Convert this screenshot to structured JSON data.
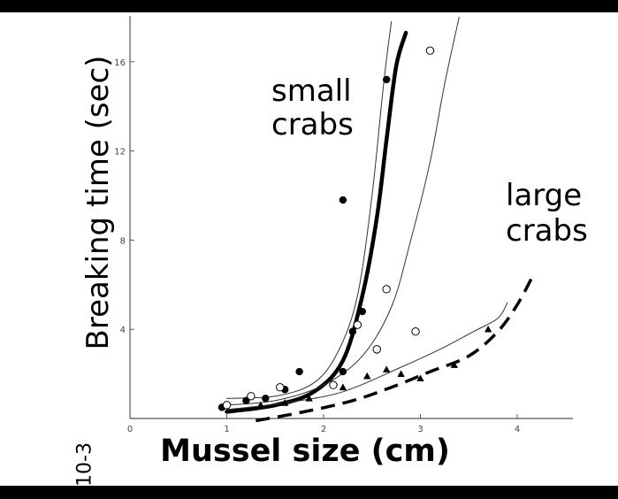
{
  "chart_data": {
    "type": "scatter",
    "xlabel": "Mussel size (cm)",
    "ylabel": "Breaking time (sec)",
    "xlim": [
      0,
      4.5
    ],
    "ylim": [
      0,
      18
    ],
    "x_ticks": [
      "0",
      "1",
      "2",
      "3",
      "4"
    ],
    "y_ticks": [
      "4",
      "8",
      "12",
      "16"
    ],
    "annotations": {
      "small": "small\ncrabs",
      "large": "large\ncrabs",
      "side_mark": "10-3"
    },
    "series": [
      {
        "marker": "filled-circle",
        "color": "#000000",
        "points": [
          [
            0.95,
            0.5
          ],
          [
            1.2,
            0.8
          ],
          [
            1.4,
            0.9
          ],
          [
            1.6,
            1.3
          ],
          [
            1.75,
            2.1
          ],
          [
            2.2,
            9.8
          ],
          [
            2.2,
            2.1
          ],
          [
            2.3,
            3.9
          ],
          [
            2.4,
            4.8
          ],
          [
            2.65,
            15.2
          ]
        ]
      },
      {
        "marker": "open-circle",
        "color": "#000000",
        "points": [
          [
            1.0,
            0.6
          ],
          [
            1.25,
            1.0
          ],
          [
            1.55,
            1.4
          ],
          [
            2.1,
            1.5
          ],
          [
            2.35,
            4.2
          ],
          [
            2.55,
            3.1
          ],
          [
            2.65,
            5.8
          ],
          [
            2.95,
            3.9
          ],
          [
            3.1,
            16.5
          ]
        ]
      },
      {
        "marker": "filled-triangle",
        "color": "#000000",
        "points": [
          [
            1.35,
            0.6
          ],
          [
            1.6,
            0.7
          ],
          [
            1.85,
            0.9
          ],
          [
            2.2,
            1.4
          ],
          [
            2.45,
            1.9
          ],
          [
            2.65,
            2.2
          ],
          [
            2.8,
            2.0
          ],
          [
            3.0,
            1.8
          ],
          [
            3.35,
            2.4
          ],
          [
            3.7,
            4.0
          ]
        ]
      }
    ],
    "curves": [
      {
        "style": "bold",
        "points": [
          [
            1.0,
            0.3
          ],
          [
            1.5,
            0.6
          ],
          [
            1.9,
            1.2
          ],
          [
            2.2,
            2.6
          ],
          [
            2.4,
            5.5
          ],
          [
            2.55,
            9.0
          ],
          [
            2.65,
            12.5
          ],
          [
            2.75,
            15.8
          ],
          [
            2.85,
            17.3
          ]
        ]
      },
      {
        "style": "thin",
        "points": [
          [
            1.0,
            0.9
          ],
          [
            1.5,
            1.0
          ],
          [
            1.9,
            1.6
          ],
          [
            2.15,
            3.0
          ],
          [
            2.35,
            5.5
          ],
          [
            2.5,
            10.0
          ],
          [
            2.62,
            15.0
          ],
          [
            2.7,
            17.8
          ]
        ]
      },
      {
        "style": "thin",
        "points": [
          [
            1.0,
            0.6
          ],
          [
            1.5,
            0.8
          ],
          [
            2.0,
            1.5
          ],
          [
            2.4,
            2.8
          ],
          [
            2.7,
            5.0
          ],
          [
            2.9,
            8.0
          ],
          [
            3.1,
            11.5
          ],
          [
            3.25,
            15.0
          ],
          [
            3.4,
            18.0
          ]
        ]
      },
      {
        "style": "thin",
        "points": [
          [
            1.0,
            0.4
          ],
          [
            1.6,
            0.7
          ],
          [
            2.2,
            1.2
          ],
          [
            2.8,
            2.3
          ],
          [
            3.2,
            3.1
          ],
          [
            3.55,
            3.9
          ],
          [
            3.8,
            4.5
          ],
          [
            3.9,
            5.2
          ]
        ]
      },
      {
        "style": "dashed",
        "points": [
          [
            1.3,
            -0.1
          ],
          [
            1.8,
            0.3
          ],
          [
            2.3,
            0.8
          ],
          [
            2.7,
            1.4
          ],
          [
            3.1,
            2.1
          ],
          [
            3.5,
            2.8
          ],
          [
            3.8,
            3.9
          ],
          [
            4.0,
            5.1
          ],
          [
            4.15,
            6.3
          ]
        ]
      }
    ]
  }
}
